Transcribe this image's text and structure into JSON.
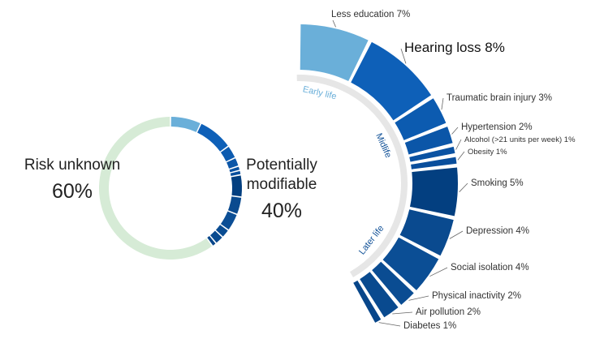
{
  "chart_data": [
    {
      "type": "donut",
      "categories": [
        "Risk unknown",
        "Potentially modifiable"
      ],
      "values": [
        60,
        40
      ],
      "value_labels": [
        "60%",
        "40%"
      ],
      "color": "#d6ebd6"
    },
    {
      "type": "radial-bar",
      "categories": [
        "Less education",
        "Hearing loss",
        "Traumatic brain injury",
        "Hypertension",
        "Alcohol (>21 units per week)",
        "Obesity",
        "Smoking",
        "Depression",
        "Social isolation",
        "Physical inactivity",
        "Air pollution",
        "Diabetes"
      ],
      "values": [
        7,
        8,
        3,
        2,
        1,
        1,
        5,
        4,
        4,
        2,
        2,
        1
      ],
      "value_labels": [
        "7%",
        "8%",
        "3%",
        "2%",
        "1%",
        "1%",
        "5%",
        "4%",
        "4%",
        "2%",
        "2%",
        "1%"
      ],
      "colors": [
        "#6aafd9",
        "#0e60b8",
        "#0c5bb0",
        "#0b56a8",
        "#0a52a2",
        "#094e9c",
        "#033f80",
        "#0a4a8f",
        "#0b4e95",
        "#0a4c92",
        "#094a8f",
        "#08468a"
      ],
      "stages": [
        "Early life",
        "Midlife",
        "Later life"
      ]
    }
  ]
}
